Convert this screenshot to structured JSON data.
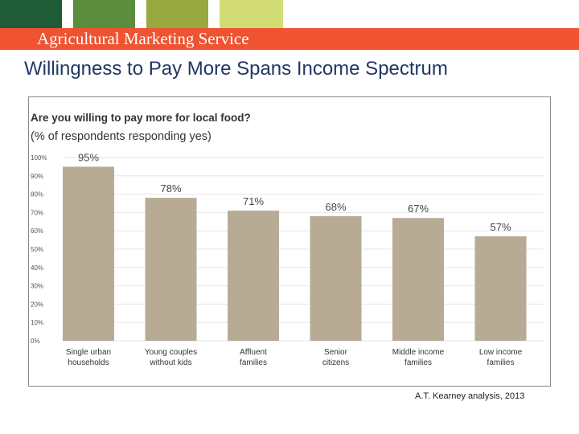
{
  "header": {
    "agency_name": "Agricultural Marketing Service",
    "swatch_colors": [
      "#1f5b36",
      "#5c8d3c",
      "#98a940",
      "#d2dc74"
    ],
    "banner_color": "#ef5331"
  },
  "slide": {
    "title": "Willingness to Pay More Spans Income Spectrum",
    "source": "A.T. Kearney analysis, 2013"
  },
  "chart_data": {
    "type": "bar",
    "title": "Are you willing to pay more for local food?",
    "subtitle": "(% of respondents responding yes)",
    "categories": [
      [
        "Single urban",
        "households"
      ],
      [
        "Young couples",
        "without kids"
      ],
      [
        "Affluent",
        "families"
      ],
      [
        "Senior",
        "citizens"
      ],
      [
        "Middle income",
        "families"
      ],
      [
        "Low income",
        "families"
      ]
    ],
    "values": [
      95,
      78,
      71,
      68,
      67,
      57
    ],
    "data_labels": [
      "95%",
      "78%",
      "71%",
      "68%",
      "67%",
      "57%"
    ],
    "ylim": [
      0,
      100
    ],
    "yticks": [
      0,
      10,
      20,
      30,
      40,
      50,
      60,
      70,
      80,
      90,
      100
    ],
    "ytick_labels": [
      "0%",
      "10%",
      "20%",
      "30%",
      "40%",
      "50%",
      "60%",
      "70%",
      "80%",
      "90%",
      "100%"
    ],
    "xlabel": "",
    "ylabel": "",
    "grid": true,
    "bar_color": "#b7ab96"
  }
}
